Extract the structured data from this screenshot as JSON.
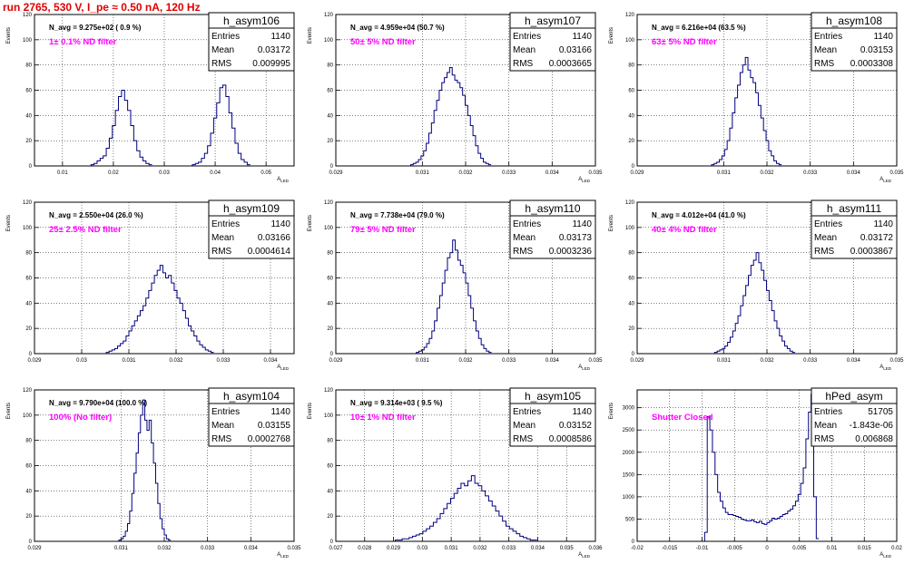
{
  "page": {
    "title": "run 2765,   530 V, I_pe ≈ 0.50 nA, 120 Hz"
  },
  "colors": {
    "title": "#e00000",
    "annotation": "#ff00ff",
    "histogram": "#000080",
    "frame": "#000000"
  },
  "stats_labels": {
    "entries": "Entries",
    "mean": "Mean",
    "rms": "RMS"
  },
  "chart_data": [
    {
      "type": "bar",
      "name": "h_asym106",
      "navg": "N_avg = 9.275e+02 ( 0.9 %)",
      "annotation": "1± 0.1% ND filter",
      "entries": "1140",
      "mean": "0.03172",
      "rms": "0.009995",
      "xlabel": "A",
      "xlabel_sub": "LED",
      "ylabel": "Events",
      "xlim": [
        0.0045,
        0.0555
      ],
      "ylim": [
        0,
        120
      ],
      "xticks": [
        0.01,
        0.02,
        0.03,
        0.04,
        0.05
      ],
      "xticklabels": [
        "0.01",
        "0.02",
        "0.03",
        "0.04",
        "0.05"
      ],
      "yticks": [
        0,
        20,
        40,
        60,
        80,
        100,
        120
      ],
      "grid": true,
      "bin_width": 0.0006,
      "peaks": [
        {
          "center": 0.0216,
          "heights": [
            1,
            2,
            4,
            6,
            8,
            14,
            22,
            32,
            44,
            55,
            60,
            52,
            44,
            32,
            20,
            12,
            7,
            4,
            2,
            1
          ]
        },
        {
          "center": 0.0412,
          "heights": [
            1,
            2,
            3,
            6,
            10,
            16,
            26,
            38,
            50,
            62,
            64,
            55,
            42,
            30,
            18,
            10,
            5,
            3,
            1
          ]
        }
      ]
    },
    {
      "type": "bar",
      "name": "h_asym107",
      "navg": "N_avg = 4.959e+04 (50.7 %)",
      "annotation": "50± 5% ND filter",
      "entries": "1140",
      "mean": "0.03166",
      "rms": "0.0003665",
      "xlabel": "A",
      "xlabel_sub": "LED",
      "ylabel": "Events",
      "xlim": [
        0.029,
        0.035
      ],
      "ylim": [
        0,
        120
      ],
      "xticks": [
        0.029,
        0.031,
        0.032,
        0.033,
        0.034,
        0.035
      ],
      "xticklabels": [
        "0.029",
        "0.031",
        "0.032",
        "0.033",
        "0.034",
        "0.035"
      ],
      "yticks": [
        0,
        20,
        40,
        60,
        80,
        100,
        120
      ],
      "grid": true,
      "bin_width": 6e-05,
      "peaks": [
        {
          "center": 0.03166,
          "heights": [
            1,
            2,
            3,
            5,
            8,
            12,
            18,
            26,
            34,
            44,
            52,
            60,
            66,
            70,
            74,
            78,
            72,
            68,
            66,
            62,
            56,
            48,
            40,
            32,
            24,
            16,
            10,
            6,
            3,
            2,
            1
          ]
        }
      ]
    },
    {
      "type": "bar",
      "name": "h_asym108",
      "navg": "N_avg = 6.216e+04 (63.5 %)",
      "annotation": "63± 5% ND filter",
      "entries": "1140",
      "mean": "0.03153",
      "rms": "0.0003308",
      "xlabel": "A",
      "xlabel_sub": "LED",
      "ylabel": "Events",
      "xlim": [
        0.029,
        0.035
      ],
      "ylim": [
        0,
        120
      ],
      "xticks": [
        0.029,
        0.031,
        0.032,
        0.033,
        0.034,
        0.035
      ],
      "xticklabels": [
        "0.029",
        "0.031",
        "0.032",
        "0.033",
        "0.034",
        "0.035"
      ],
      "yticks": [
        0,
        20,
        40,
        60,
        80,
        100,
        120
      ],
      "grid": true,
      "bin_width": 6e-05,
      "peaks": [
        {
          "center": 0.03153,
          "heights": [
            1,
            2,
            3,
            5,
            8,
            13,
            20,
            30,
            42,
            54,
            64,
            74,
            80,
            86,
            76,
            70,
            66,
            58,
            48,
            38,
            28,
            20,
            12,
            8,
            4,
            2,
            1
          ]
        }
      ]
    },
    {
      "type": "bar",
      "name": "h_asym109",
      "navg": "N_avg = 2.550e+04 (26.0 %)",
      "annotation": "25± 2.5% ND filter",
      "entries": "1140",
      "mean": "0.03166",
      "rms": "0.0004614",
      "xlabel": "A",
      "xlabel_sub": "LED",
      "ylabel": "Events",
      "xlim": [
        0.029,
        0.0345
      ],
      "ylim": [
        0,
        120
      ],
      "xticks": [
        0.029,
        0.03,
        0.031,
        0.032,
        0.033,
        0.034
      ],
      "xticklabels": [
        "0.029",
        "0.03",
        "0.031",
        "0.032",
        "0.033",
        "0.034"
      ],
      "yticks": [
        0,
        20,
        40,
        60,
        80,
        100,
        120
      ],
      "grid": true,
      "bin_width": 6e-05,
      "peaks": [
        {
          "center": 0.03166,
          "heights": [
            1,
            2,
            3,
            4,
            6,
            8,
            10,
            14,
            18,
            22,
            26,
            30,
            34,
            38,
            44,
            50,
            56,
            62,
            66,
            70,
            64,
            60,
            62,
            56,
            50,
            44,
            40,
            34,
            28,
            22,
            18,
            14,
            10,
            7,
            5,
            3,
            2,
            1
          ]
        }
      ]
    },
    {
      "type": "bar",
      "name": "h_asym110",
      "navg": "N_avg = 7.738e+04 (79.0 %)",
      "annotation": "79± 5% ND filter",
      "entries": "1140",
      "mean": "0.03173",
      "rms": "0.0003236",
      "xlabel": "A",
      "xlabel_sub": "LED",
      "ylabel": "Events",
      "xlim": [
        0.029,
        0.035
      ],
      "ylim": [
        0,
        120
      ],
      "xticks": [
        0.029,
        0.031,
        0.032,
        0.033,
        0.034,
        0.035
      ],
      "xticklabels": [
        "0.029",
        "0.031",
        "0.032",
        "0.033",
        "0.034",
        "0.035"
      ],
      "yticks": [
        0,
        20,
        40,
        60,
        80,
        100,
        120
      ],
      "grid": true,
      "bin_width": 6e-05,
      "peaks": [
        {
          "center": 0.03173,
          "heights": [
            1,
            2,
            3,
            5,
            8,
            12,
            18,
            26,
            36,
            46,
            56,
            66,
            76,
            80,
            90,
            82,
            74,
            70,
            64,
            56,
            46,
            36,
            26,
            18,
            12,
            7,
            4,
            2,
            1
          ]
        }
      ]
    },
    {
      "type": "bar",
      "name": "h_asym111",
      "navg": "N_avg = 4.012e+04 (41.0 %)",
      "annotation": "40± 4% ND filter",
      "entries": "1140",
      "mean": "0.03172",
      "rms": "0.0003867",
      "xlabel": "A",
      "xlabel_sub": "LED",
      "ylabel": "Events",
      "xlim": [
        0.029,
        0.035
      ],
      "ylim": [
        0,
        120
      ],
      "xticks": [
        0.029,
        0.031,
        0.032,
        0.033,
        0.034,
        0.035
      ],
      "xticklabels": [
        "0.029",
        "0.031",
        "0.032",
        "0.033",
        "0.034",
        "0.035"
      ],
      "yticks": [
        0,
        20,
        40,
        60,
        80,
        100,
        120
      ],
      "grid": true,
      "bin_width": 6e-05,
      "peaks": [
        {
          "center": 0.03172,
          "heights": [
            1,
            2,
            3,
            4,
            6,
            9,
            13,
            18,
            24,
            30,
            38,
            46,
            54,
            62,
            70,
            74,
            80,
            72,
            66,
            58,
            50,
            42,
            34,
            26,
            20,
            14,
            10,
            6,
            4,
            2,
            1
          ]
        }
      ]
    },
    {
      "type": "bar",
      "name": "h_asym104",
      "navg": "N_avg = 9.790e+04 (100.0 %)",
      "annotation": "100% (No filter)",
      "entries": "1140",
      "mean": "0.03155",
      "rms": "0.0002768",
      "xlabel": "A",
      "xlabel_sub": "LED",
      "ylabel": "Events",
      "xlim": [
        0.029,
        0.035
      ],
      "ylim": [
        0,
        120
      ],
      "xticks": [
        0.029,
        0.031,
        0.032,
        0.033,
        0.034,
        0.035
      ],
      "xticklabels": [
        "0.029",
        "0.031",
        "0.032",
        "0.033",
        "0.034",
        "0.035"
      ],
      "yticks": [
        0,
        20,
        40,
        60,
        80,
        100,
        120
      ],
      "grid": true,
      "bin_width": 5e-05,
      "peaks": [
        {
          "center": 0.03155,
          "heights": [
            1,
            2,
            4,
            8,
            14,
            24,
            38,
            54,
            70,
            86,
            100,
            112,
            96,
            88,
            96,
            78,
            62,
            46,
            30,
            18,
            10,
            5,
            2,
            1
          ]
        }
      ]
    },
    {
      "type": "bar",
      "name": "h_asym105",
      "navg": "N_avg = 9.314e+03 ( 9.5 %)",
      "annotation": "10± 1% ND filter",
      "entries": "1140",
      "mean": "0.03152",
      "rms": "0.0008586",
      "xlabel": "A",
      "xlabel_sub": "LED",
      "ylabel": "Events",
      "xlim": [
        0.027,
        0.036
      ],
      "ylim": [
        0,
        120
      ],
      "xticks": [
        0.027,
        0.028,
        0.029,
        0.03,
        0.031,
        0.032,
        0.033,
        0.034,
        0.035,
        0.036
      ],
      "xticklabels": [
        "0.027",
        "0.028",
        "0.029",
        "0.03",
        "0.031",
        "0.032",
        "0.033",
        "0.034",
        "0.035",
        "0.036"
      ],
      "yticks": [
        0,
        20,
        40,
        60,
        80,
        100,
        120
      ],
      "grid": true,
      "bin_width": 0.00012,
      "peaks": [
        {
          "center": 0.03152,
          "heights": [
            1,
            1,
            2,
            2,
            3,
            4,
            5,
            6,
            8,
            10,
            12,
            15,
            18,
            22,
            26,
            30,
            34,
            38,
            42,
            46,
            44,
            48,
            52,
            46,
            44,
            40,
            36,
            32,
            28,
            24,
            20,
            16,
            12,
            10,
            8,
            6,
            4,
            3,
            2,
            1,
            1
          ]
        }
      ]
    },
    {
      "type": "bar",
      "name": "hPed_asym",
      "navg": "",
      "annotation": "Shutter Closed",
      "entries": "51705",
      "mean": "-1.843e-06",
      "rms": "0.006868",
      "xlabel": "A",
      "xlabel_sub": "LED",
      "ylabel": "Events",
      "xlim": [
        -0.02,
        0.02
      ],
      "ylim": [
        0,
        3400
      ],
      "xticks": [
        -0.02,
        -0.015,
        -0.01,
        -0.005,
        0,
        0.005,
        0.01,
        0.015,
        0.02
      ],
      "xticklabels": [
        "-0.02",
        "-0.015",
        "-0.01",
        "-0.005",
        "0",
        "0.005",
        "0.01",
        "0.015",
        "0.02"
      ],
      "yticks": [
        0,
        500,
        1000,
        1500,
        2000,
        2500,
        3000
      ],
      "grid": true,
      "bin_width": 0.0004,
      "x0": -0.0096,
      "heights": [
        200,
        2800,
        2500,
        2000,
        1500,
        1100,
        900,
        750,
        650,
        600,
        600,
        580,
        560,
        540,
        500,
        480,
        460,
        460,
        480,
        440,
        420,
        450,
        400,
        380,
        420,
        460,
        520,
        500,
        520,
        560,
        600,
        620,
        680,
        720,
        800,
        900,
        1050,
        1300,
        1650,
        2300,
        2900,
        3300,
        1000,
        60
      ]
    }
  ]
}
